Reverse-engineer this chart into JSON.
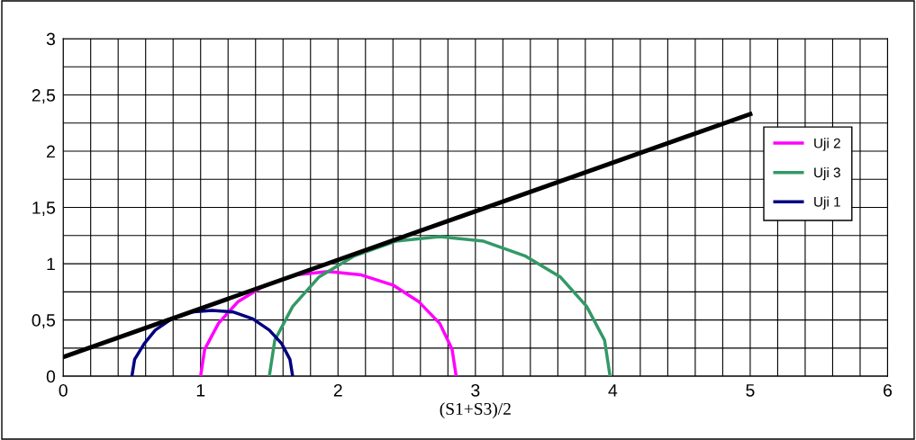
{
  "chart_data": {
    "type": "line",
    "xlabel": "(S1+S3)/2",
    "xlim": [
      0,
      6
    ],
    "ylim": [
      0,
      3
    ],
    "xticks": [
      0,
      {
        "value": 0.2,
        "label": null
      },
      {
        "value": 0.4,
        "label": null
      },
      {
        "value": 0.6,
        "label": null
      },
      {
        "value": 0.8,
        "label": null
      },
      1,
      {
        "value": 1.2,
        "label": null
      },
      {
        "value": 1.4,
        "label": null
      },
      {
        "value": 1.6,
        "label": null
      },
      {
        "value": 1.8,
        "label": null
      },
      2,
      {
        "value": 2.2,
        "label": null
      },
      {
        "value": 2.4,
        "label": null
      },
      {
        "value": 2.6,
        "label": null
      },
      {
        "value": 2.8,
        "label": null
      },
      3,
      {
        "value": 3.2,
        "label": null
      },
      {
        "value": 3.4,
        "label": null
      },
      {
        "value": 3.6,
        "label": null
      },
      {
        "value": 3.8,
        "label": null
      },
      4,
      {
        "value": 4.2,
        "label": null
      },
      {
        "value": 4.4,
        "label": null
      },
      {
        "value": 4.6,
        "label": null
      },
      {
        "value": 4.8,
        "label": null
      },
      5,
      {
        "value": 5.2,
        "label": null
      },
      {
        "value": 5.4,
        "label": null
      },
      {
        "value": 5.6,
        "label": null
      },
      {
        "value": 5.8,
        "label": null
      },
      6
    ],
    "yticks": [
      0,
      {
        "value": 0.25,
        "label": null
      },
      {
        "value": 0.5,
        "label": "0,5"
      },
      {
        "value": 0.75,
        "label": null
      },
      1,
      {
        "value": 1.25,
        "label": null
      },
      {
        "value": 1.5,
        "label": "1,5"
      },
      {
        "value": 1.75,
        "label": null
      },
      2,
      {
        "value": 2.25,
        "label": null
      },
      {
        "value": 2.5,
        "label": "2,5"
      },
      {
        "value": 2.75,
        "label": null
      },
      3
    ],
    "grid": true,
    "legend": "right",
    "marker": "none",
    "line_style": "solid",
    "series": [
      {
        "name": "Uji 2",
        "color": "#ff00ff",
        "x": [
          1.0,
          1.03,
          1.13,
          1.27,
          1.47,
          1.69,
          1.93,
          2.17,
          2.4,
          2.59,
          2.74,
          2.83,
          2.86
        ],
        "values": [
          0,
          0.24,
          0.47,
          0.66,
          0.81,
          0.9,
          0.93,
          0.9,
          0.81,
          0.66,
          0.47,
          0.24,
          0
        ]
      },
      {
        "name": "Uji 3",
        "color": "#339966",
        "x": [
          1.5,
          1.54,
          1.67,
          1.86,
          2.12,
          2.42,
          2.74,
          3.06,
          3.36,
          3.62,
          3.81,
          3.94,
          3.98
        ],
        "values": [
          0,
          0.32,
          0.62,
          0.88,
          1.07,
          1.2,
          1.24,
          1.2,
          1.07,
          0.88,
          0.62,
          0.32,
          0
        ]
      },
      {
        "name": "Uji 1",
        "color": "#000080",
        "x": [
          0.5,
          0.52,
          0.59,
          0.67,
          0.79,
          0.93,
          1.085,
          1.24,
          1.38,
          1.5,
          1.59,
          1.65,
          1.67
        ],
        "values": [
          0,
          0.15,
          0.29,
          0.41,
          0.51,
          0.57,
          0.585,
          0.57,
          0.51,
          0.41,
          0.29,
          0.15,
          0
        ]
      },
      {
        "color": "#000000",
        "x": [
          0,
          5
        ],
        "values": [
          0.17,
          2.33
        ]
      }
    ]
  }
}
